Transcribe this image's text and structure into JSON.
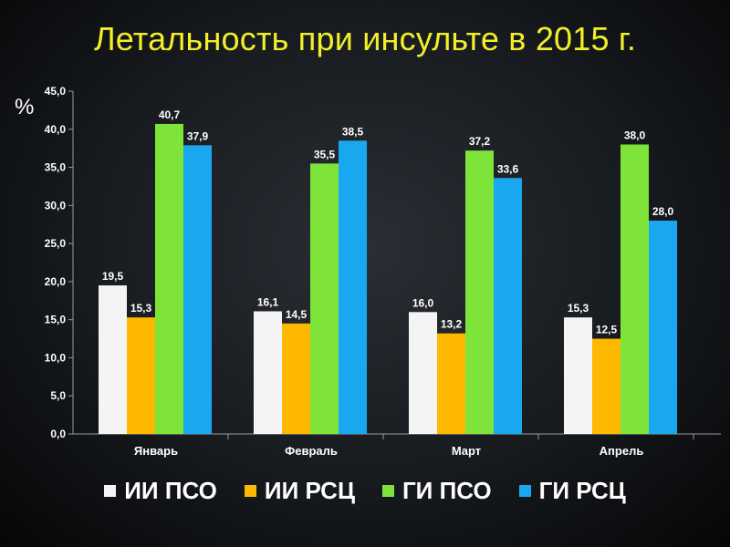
{
  "title": "Летальность при инсульте  в 2015 г.",
  "chart_data": {
    "type": "bar",
    "title": "Летальность при инсульте  в 2015 г.",
    "ylabel": "%",
    "xlabel": "",
    "categories": [
      "Январь",
      "Февраль",
      "Март",
      "Апрель"
    ],
    "series": [
      {
        "name": "ИИ ПСО",
        "values": [
          19.5,
          16.1,
          16.0,
          15.3
        ],
        "color": "#f4f4f4"
      },
      {
        "name": "ИИ РСЦ",
        "values": [
          15.3,
          14.5,
          13.2,
          12.5
        ],
        "color": "#ffb800"
      },
      {
        "name": "ГИ ПСО",
        "values": [
          40.7,
          35.5,
          37.2,
          38.0
        ],
        "color": "#7ee43a"
      },
      {
        "name": "ГИ РСЦ",
        "values": [
          37.9,
          38.5,
          33.6,
          28.0
        ],
        "color": "#19a8f0"
      }
    ],
    "value_labels": [
      [
        "19,5",
        "16,1",
        "16,0",
        "15,3"
      ],
      [
        "15,3",
        "14,5",
        "13,2",
        "12,5"
      ],
      [
        "40,7",
        "35,5",
        "37,2",
        "38,0"
      ],
      [
        "37,9",
        "38,5",
        "33,6",
        "28,0"
      ]
    ],
    "ylim": [
      0,
      45
    ],
    "yticks": [
      0,
      5,
      10,
      15,
      20,
      25,
      30,
      35,
      40,
      45
    ],
    "ytick_labels": [
      "0,0",
      "5,0",
      "10,0",
      "15,0",
      "20,0",
      "25,0",
      "30,0",
      "35,0",
      "40,0",
      "45,0"
    ],
    "grid": false,
    "legend_position": "bottom"
  }
}
